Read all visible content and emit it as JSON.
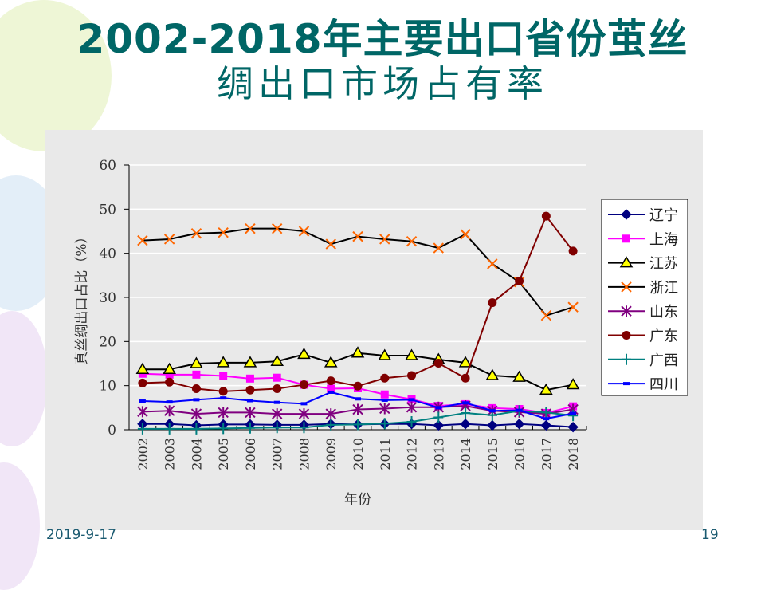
{
  "slide": {
    "title_line1": "2002-2018年主要出口省份茧丝",
    "title_line2": "绸出口市场占有率",
    "footer_date": "2019-9-17",
    "page_number": "19"
  },
  "chart_data": {
    "type": "line",
    "title": "2002-2018年主要出口省份茧丝绸出口市场占有率",
    "xlabel": "年份",
    "ylabel": "真丝绸出口占比（%）",
    "ylim": [
      0,
      60
    ],
    "yticks": [
      "0",
      "10",
      "20",
      "30",
      "40",
      "50",
      "60"
    ],
    "grid": true,
    "legend_position": "right",
    "categories": [
      "2002",
      "2003",
      "2004",
      "2005",
      "2006",
      "2007",
      "2008",
      "2009",
      "2010",
      "2011",
      "2012",
      "2013",
      "2014",
      "2015",
      "2016",
      "2017",
      "2018"
    ],
    "series": [
      {
        "name": "辽宁",
        "marker": "diamond",
        "line_color": "#000080",
        "marker_color": "#000080",
        "values": [
          1.3,
          1.3,
          1.0,
          1.2,
          1.2,
          1.1,
          1.1,
          1.3,
          1.2,
          1.3,
          1.3,
          1.0,
          1.3,
          1.0,
          1.3,
          1.0,
          0.6
        ]
      },
      {
        "name": "上海",
        "marker": "square",
        "line_color": "#ff00ff",
        "marker_color": "#ff00ff",
        "values": [
          12.7,
          12.5,
          12.5,
          12.2,
          11.6,
          11.8,
          10.2,
          9.3,
          9.4,
          8.0,
          6.9,
          5.4,
          5.8,
          4.9,
          4.7,
          3.8,
          5.3
        ]
      },
      {
        "name": "江苏",
        "marker": "triangle",
        "line_color": "#000000",
        "marker_color": "#ffff00",
        "values": [
          13.7,
          13.7,
          15.0,
          15.2,
          15.2,
          15.5,
          17.1,
          15.2,
          17.4,
          16.8,
          16.8,
          15.9,
          15.2,
          12.3,
          11.9,
          9.0,
          10.2
        ]
      },
      {
        "name": "浙江",
        "marker": "x",
        "line_color": "#000000",
        "marker_color": "#ff6600",
        "values": [
          42.9,
          43.2,
          44.5,
          44.7,
          45.6,
          45.6,
          45.0,
          42.1,
          43.8,
          43.2,
          42.7,
          41.2,
          44.3,
          37.6,
          33.5,
          25.9,
          27.8
        ]
      },
      {
        "name": "山东",
        "marker": "star",
        "line_color": "#800080",
        "marker_color": "#800080",
        "values": [
          4.1,
          4.3,
          3.6,
          3.9,
          3.9,
          3.6,
          3.6,
          3.6,
          4.6,
          4.8,
          5.1,
          5.1,
          5.4,
          4.3,
          4.0,
          3.6,
          4.6
        ]
      },
      {
        "name": "广东",
        "marker": "circle",
        "line_color": "#800000",
        "marker_color": "#800000",
        "values": [
          10.6,
          10.8,
          9.3,
          8.7,
          9.0,
          9.3,
          10.2,
          11.1,
          9.9,
          11.7,
          12.3,
          15.1,
          11.7,
          28.8,
          33.7,
          48.4,
          40.5
        ]
      },
      {
        "name": "广西",
        "marker": "plus",
        "line_color": "#008080",
        "marker_color": "#008080",
        "values": [
          0.2,
          0.2,
          0.2,
          0.3,
          0.4,
          0.5,
          0.5,
          1.1,
          1.2,
          1.4,
          1.8,
          2.8,
          3.8,
          3.3,
          4.3,
          3.9,
          3.2
        ]
      },
      {
        "name": "四川",
        "marker": "dash",
        "line_color": "#0000ff",
        "marker_color": "#0000ff",
        "values": [
          6.5,
          6.3,
          6.8,
          7.2,
          6.6,
          6.2,
          5.9,
          8.5,
          7.0,
          6.7,
          6.8,
          5.0,
          6.1,
          4.3,
          4.4,
          2.5,
          3.7
        ]
      }
    ]
  }
}
